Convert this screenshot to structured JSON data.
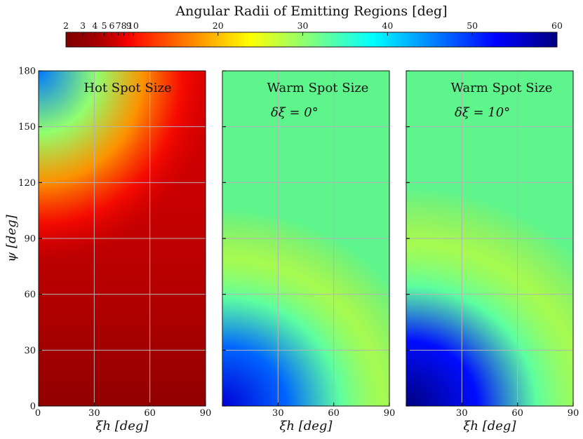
{
  "chart_data": [
    {
      "type": "colorbar",
      "title": "Angular Radii of Emitting Regions [deg]",
      "colormap": "jet",
      "range": [
        2,
        60
      ],
      "ticks": [
        "2",
        "3",
        "4",
        "5",
        "6",
        "7",
        "8",
        "9",
        "10",
        "20",
        "30",
        "40",
        "50",
        "60"
      ]
    },
    {
      "type": "heatmap",
      "title": "Hot Spot Size",
      "subtitle": "",
      "xlabel": "ξh [deg]",
      "ylabel": "ψ [deg]",
      "xlim": [
        0,
        90
      ],
      "ylim": [
        0,
        180
      ],
      "xticks": [
        "0",
        "30",
        "60",
        "90"
      ],
      "yticks": [
        "0",
        "30",
        "60",
        "90",
        "120",
        "150",
        "180"
      ],
      "grid": true,
      "value_range_deg": [
        2,
        45
      ],
      "corner_values_deg": {
        "psi0_xi0": 2,
        "psi0_xi90": 5,
        "psi180_xi0": 45,
        "psi180_xi90": 6
      }
    },
    {
      "type": "heatmap",
      "title": "Warm Spot Size",
      "subtitle": "δξ = 0°",
      "xlabel": "ξh [deg]",
      "xlim": [
        0,
        90
      ],
      "ylim": [
        0,
        180
      ],
      "xticks": [
        "30",
        "60",
        "90"
      ],
      "grid": true,
      "value_range_deg": [
        20,
        55
      ],
      "corner_values_deg": {
        "psi0_xi0": 55,
        "psi0_xi90": 20,
        "psi180_xi0": 20,
        "psi180_xi90": 20
      }
    },
    {
      "type": "heatmap",
      "title": "Warm Spot Size",
      "subtitle": "δξ = 10°",
      "xlabel": "ξh [deg]",
      "xlim": [
        0,
        90
      ],
      "ylim": [
        0,
        180
      ],
      "xticks": [
        "30",
        "60",
        "90"
      ],
      "grid": true,
      "value_range_deg": [
        20,
        60
      ],
      "corner_values_deg": {
        "psi0_xi0": 60,
        "psi0_xi90": 20,
        "psi180_xi0": 20,
        "psi180_xi90": 20
      }
    }
  ]
}
